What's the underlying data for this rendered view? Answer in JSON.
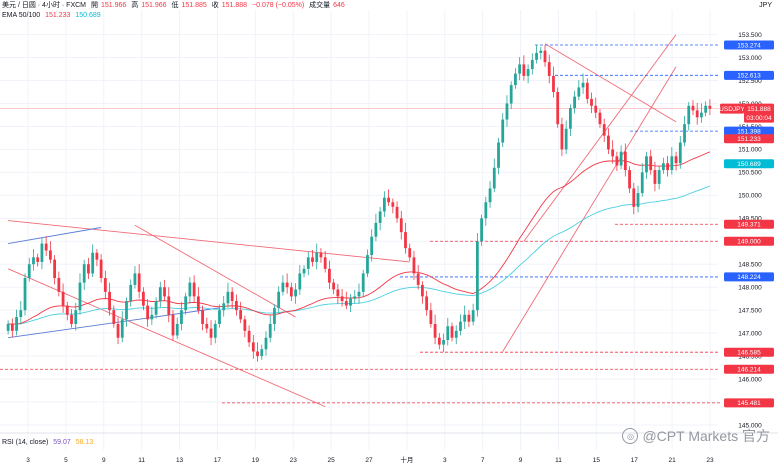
{
  "header": {
    "symbol": "美元 / 日圆 · 4小时 · FXCM",
    "open_label": "開",
    "open": "151.966",
    "high_label": "高",
    "high": "151.966",
    "low_label": "低",
    "low": "151.885",
    "close_label": "收",
    "close": "151.888",
    "change": "−0.078 (−0.05%)",
    "volume_label": "成交量",
    "volume": "646",
    "ema_label": "EMA 50/100",
    "ema50": "151.233",
    "ema100": "150.689",
    "rsi_label": "RSI (14, close)",
    "rsi": "59.07",
    "rsi_ma": "58.13"
  },
  "currency": "JPY",
  "watermark": "@CPT Markets 官方",
  "price_tag": {
    "symbol": "USDJPY",
    "price": "151.888",
    "countdown": "03:00:04"
  },
  "colors": {
    "up": "#26a69a",
    "down": "#f23645",
    "ema50": "#f23645",
    "ema100": "#4dd0e1",
    "channel_red": "#f06a76",
    "channel_blue": "#5b7bd5",
    "level_blue": "#2962ff",
    "level_red": "#f23645"
  },
  "chart_data": {
    "type": "candlestick",
    "ylim": [
      145.0,
      153.6
    ],
    "y_ticks": [
      "145.000",
      "145.500",
      "146.000",
      "146.500",
      "147.000",
      "147.500",
      "148.000",
      "148.500",
      "149.000",
      "149.500",
      "150.000",
      "150.500",
      "151.000",
      "151.500",
      "152.000",
      "152.500",
      "153.000",
      "153.500"
    ],
    "x_ticks": [
      "3",
      "5",
      "9",
      "11",
      "13",
      "17",
      "19",
      "23",
      "25",
      "27",
      "十月",
      "3",
      "7",
      "9",
      "11",
      "15",
      "17",
      "21",
      "23"
    ],
    "levels": [
      {
        "price": "153.274",
        "style": "blue"
      },
      {
        "price": "152.613",
        "style": "blue"
      },
      {
        "price": "151.398",
        "style": "blue"
      },
      {
        "price": "149.371",
        "style": "red"
      },
      {
        "price": "149.000",
        "style": "red"
      },
      {
        "price": "148.224",
        "style": "blue"
      },
      {
        "price": "146.585",
        "style": "red"
      },
      {
        "price": "146.214",
        "style": "red"
      },
      {
        "price": "145.481",
        "style": "red"
      }
    ],
    "ema_tags": [
      {
        "price": "151.233",
        "style": "red"
      },
      {
        "price": "150.689",
        "style": "cyan"
      }
    ],
    "last_price": 151.888,
    "closes": [
      147.2,
      147.05,
      147.35,
      147.5,
      148.2,
      148.5,
      148.65,
      148.55,
      148.95,
      148.8,
      148.6,
      148.2,
      147.9,
      147.6,
      147.4,
      147.2,
      147.5,
      148.1,
      148.5,
      148.3,
      148.75,
      148.6,
      148.2,
      147.9,
      147.5,
      147.2,
      146.9,
      147.3,
      147.7,
      148.05,
      148.3,
      147.9,
      147.6,
      147.3,
      147.4,
      147.7,
      148.0,
      147.8,
      147.4,
      146.95,
      147.2,
      147.5,
      147.8,
      148.1,
      147.8,
      147.5,
      147.2,
      147.1,
      146.9,
      147.2,
      147.5,
      147.65,
      147.9,
      147.7,
      147.5,
      147.3,
      147.05,
      146.8,
      146.6,
      146.5,
      146.65,
      146.9,
      147.2,
      147.55,
      147.9,
      148.1,
      148.0,
      147.8,
      147.95,
      148.3,
      148.4,
      148.65,
      148.55,
      148.75,
      148.65,
      148.4,
      148.1,
      147.95,
      147.8,
      147.7,
      147.6,
      147.75,
      147.8,
      147.9,
      148.3,
      148.7,
      149.1,
      149.4,
      149.65,
      149.95,
      149.85,
      149.75,
      149.5,
      149.2,
      148.85,
      148.65,
      148.3,
      148.05,
      147.8,
      147.5,
      147.2,
      146.9,
      146.75,
      146.85,
      147.15,
      146.9,
      147.05,
      147.25,
      147.4,
      147.25,
      147.5,
      149.0,
      149.5,
      149.85,
      150.15,
      150.6,
      151.15,
      151.65,
      152.0,
      152.4,
      152.65,
      152.85,
      152.6,
      152.75,
      152.95,
      153.1,
      153.15,
      152.9,
      152.6,
      152.25,
      151.55,
      151.0,
      151.45,
      151.9,
      152.15,
      152.35,
      152.45,
      152.1,
      151.95,
      151.8,
      151.55,
      151.3,
      151.0,
      150.85,
      150.65,
      150.95,
      150.55,
      150.15,
      149.75,
      150.05,
      150.5,
      150.85,
      150.55,
      150.25,
      150.55,
      150.7,
      150.55,
      150.85,
      150.7,
      151.15,
      151.55,
      151.95,
      151.85,
      151.7,
      151.8,
      151.95,
      151.888
    ]
  }
}
